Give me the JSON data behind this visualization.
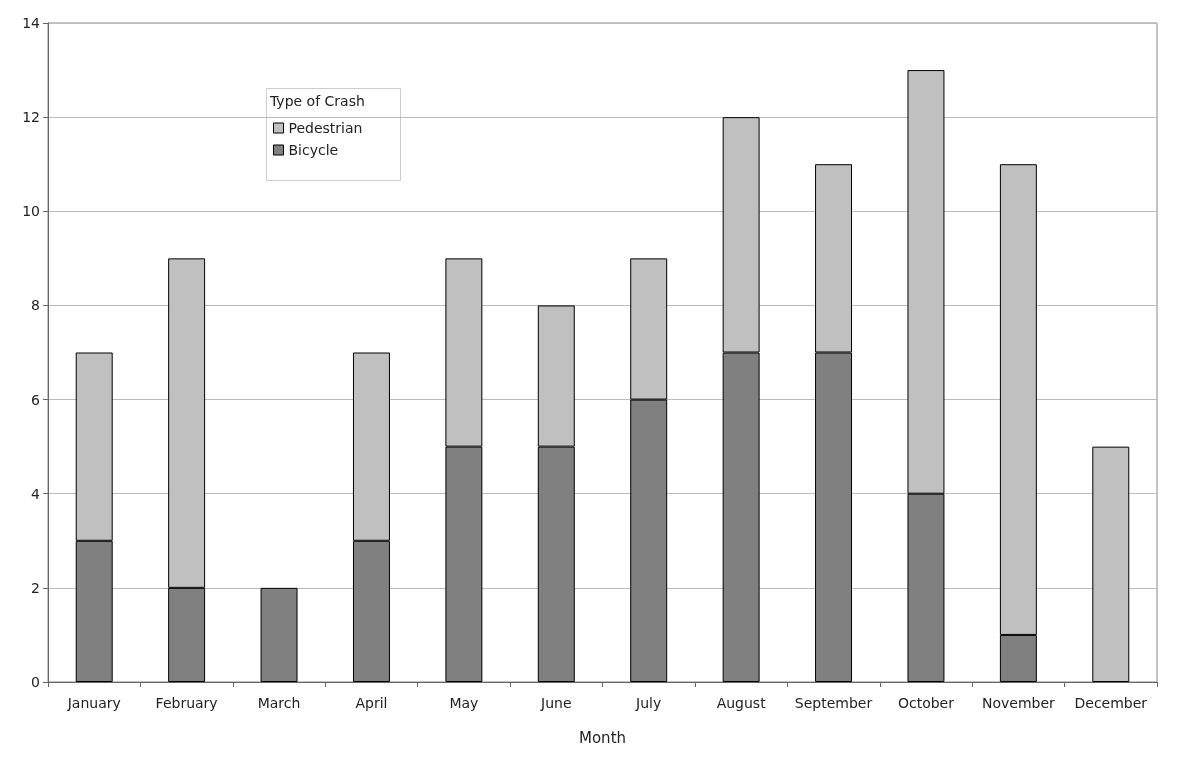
{
  "chart_data": {
    "type": "bar",
    "stacked": true,
    "xlabel": "Month",
    "legend_title": "Type of Crash",
    "legend": "top left",
    "grid": "y",
    "categories": [
      "January",
      "February",
      "March",
      "April",
      "May",
      "June",
      "July",
      "August",
      "September",
      "October",
      "November",
      "December"
    ],
    "series": [
      {
        "name": "Bicycle",
        "color": "#808080",
        "values": [
          3,
          2,
          2,
          3,
          5,
          5,
          6,
          7,
          7,
          4,
          1,
          0
        ]
      },
      {
        "name": "Pedestrian",
        "color": "#c0c0c0",
        "values": [
          4,
          7,
          0,
          4,
          4,
          3,
          3,
          5,
          4,
          9,
          10,
          5
        ]
      }
    ],
    "ylim": [
      0,
      14
    ],
    "yticks": [
      0,
      2,
      4,
      6,
      8,
      10,
      12,
      14
    ]
  }
}
